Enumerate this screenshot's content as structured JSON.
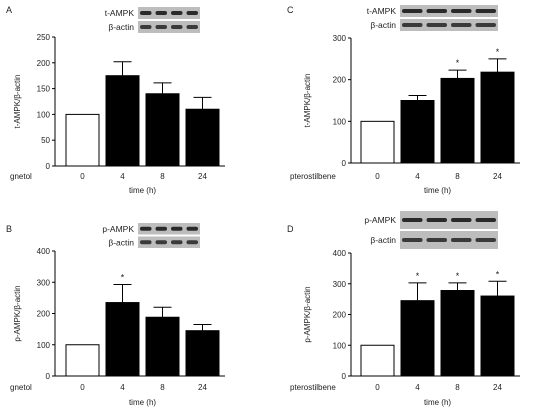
{
  "chart_data": [
    {
      "panel": "A",
      "type": "bar",
      "blot_labels": [
        "t-AMPK",
        "β-actin"
      ],
      "treatment_label": "gnetol",
      "categories": [
        "0",
        "4",
        "8",
        "24"
      ],
      "values": [
        100,
        175,
        140,
        110
      ],
      "errors": [
        0,
        27,
        21,
        23
      ],
      "significant": [
        false,
        false,
        false,
        false
      ],
      "ylabel": "t-AMPK/β-actin",
      "xlabel": "time (h)",
      "ylim": [
        0,
        250
      ],
      "yticks": [
        0,
        50,
        100,
        150,
        200,
        250
      ],
      "bar_colors": [
        "#ffffff",
        "#000000",
        "#000000",
        "#000000"
      ]
    },
    {
      "panel": "C",
      "type": "bar",
      "blot_labels": [
        "t-AMPK",
        "β-actin"
      ],
      "treatment_label": "pterostilbene",
      "categories": [
        "0",
        "4",
        "8",
        "24"
      ],
      "values": [
        100,
        150,
        203,
        218
      ],
      "errors": [
        0,
        12,
        20,
        32
      ],
      "significant": [
        false,
        false,
        true,
        true
      ],
      "ylabel": "t-AMPK/β-actin",
      "xlabel": "time (h)",
      "ylim": [
        0,
        300
      ],
      "yticks": [
        0,
        100,
        200,
        300
      ],
      "bar_colors": [
        "#ffffff",
        "#000000",
        "#000000",
        "#000000"
      ]
    },
    {
      "panel": "B",
      "type": "bar",
      "blot_labels": [
        "p-AMPK",
        "β-actin"
      ],
      "treatment_label": "gnetol",
      "categories": [
        "0",
        "4",
        "8",
        "24"
      ],
      "values": [
        100,
        235,
        188,
        145
      ],
      "errors": [
        0,
        58,
        32,
        20
      ],
      "significant": [
        false,
        true,
        false,
        false
      ],
      "ylabel": "p-AMPK/β-actin",
      "xlabel": "time (h)",
      "ylim": [
        0,
        400
      ],
      "yticks": [
        0,
        100,
        200,
        300,
        400
      ],
      "bar_colors": [
        "#ffffff",
        "#000000",
        "#000000",
        "#000000"
      ]
    },
    {
      "panel": "D",
      "type": "bar",
      "blot_labels": [
        "p-AMPK",
        "β-actin"
      ],
      "treatment_label": "pterostilbene",
      "categories": [
        "0",
        "4",
        "8",
        "24"
      ],
      "values": [
        100,
        245,
        278,
        260
      ],
      "errors": [
        0,
        58,
        25,
        48
      ],
      "significant": [
        false,
        true,
        true,
        true
      ],
      "ylabel": "p-AMPK/β-actin",
      "xlabel": "time (h)",
      "ylim": [
        0,
        400
      ],
      "yticks": [
        0,
        100,
        200,
        300,
        400
      ],
      "bar_colors": [
        "#ffffff",
        "#000000",
        "#000000",
        "#000000"
      ]
    }
  ],
  "significance_marker": "*"
}
